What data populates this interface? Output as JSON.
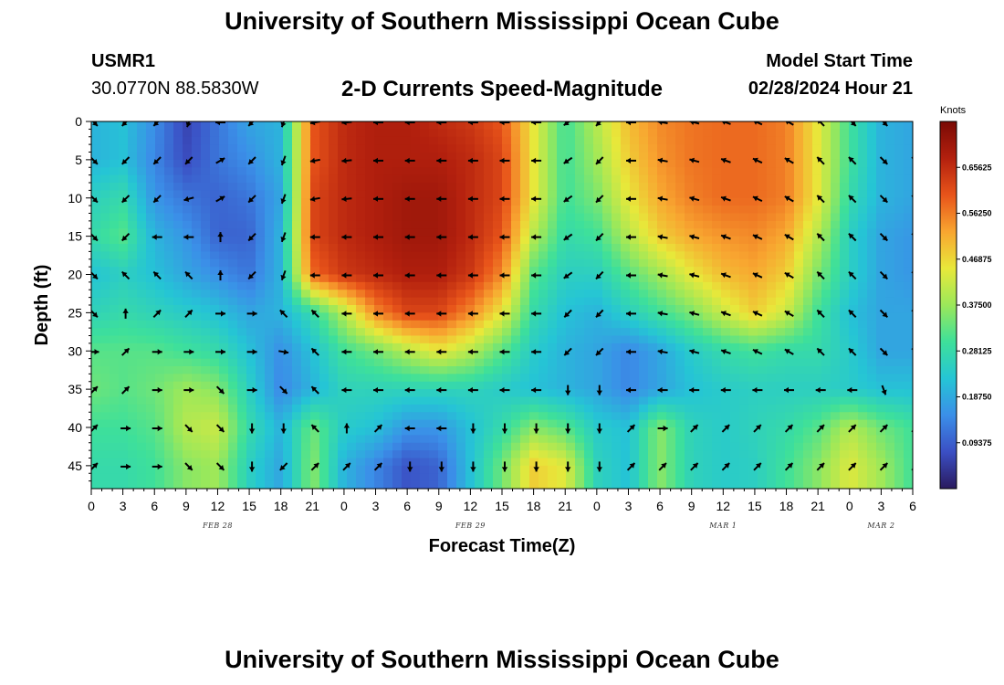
{
  "header": {
    "title": "University of Southern Mississippi Ocean Cube",
    "station_id": "USMR1",
    "station_coords": "30.0770N  88.5830W",
    "plot_title": "2-D Currents Speed-Magnitude",
    "model_label": "Model Start Time",
    "model_time": "02/28/2024 Hour 21"
  },
  "footer": {
    "title": "University of Southern Mississippi Ocean Cube"
  },
  "chart_data": {
    "type": "heatmap",
    "xlabel": "Forecast Time(Z)",
    "ylabel": "Depth (ft)",
    "x_tick_labels": [
      "0",
      "3",
      "6",
      "9",
      "12",
      "15",
      "18",
      "21",
      "0",
      "3",
      "6",
      "9",
      "12",
      "15",
      "18",
      "21",
      "0",
      "3",
      "6",
      "9",
      "12",
      "15",
      "18",
      "21",
      "0",
      "3",
      "6"
    ],
    "date_labels": [
      {
        "text": "FEB 28",
        "tick_index": 4
      },
      {
        "text": "FEB 29",
        "tick_index": 12
      },
      {
        "text": "MAR 1",
        "tick_index": 20
      },
      {
        "text": "MAR 2",
        "tick_index": 25
      }
    ],
    "y_ticks": [
      0,
      5,
      10,
      15,
      20,
      25,
      30,
      35,
      40,
      45
    ],
    "ylim": [
      0,
      48
    ],
    "colorbar": {
      "unit": "Knots",
      "ticks": [
        "0.65625",
        "0.56250",
        "0.46875",
        "0.37500",
        "0.28125",
        "0.18750",
        "0.09375"
      ],
      "range": [
        0,
        0.75
      ]
    },
    "colors": [
      "#2a1a5e",
      "#3b4fc4",
      "#3b8fe8",
      "#25c5d5",
      "#3ee09a",
      "#9be85a",
      "#e8e83a",
      "#f8a530",
      "#e8541a",
      "#b3200e",
      "#7a0a05"
    ],
    "vector_depths": [
      0,
      5,
      10,
      15,
      20,
      25,
      30,
      35,
      40,
      45
    ],
    "vector_times": [
      0,
      3,
      6,
      9,
      12,
      15,
      18,
      21,
      24,
      27,
      30,
      33,
      36,
      39,
      42,
      45,
      48,
      51,
      54,
      57,
      60,
      63,
      66,
      69,
      72,
      75,
      78
    ],
    "speed_knots": [
      [
        0.2,
        0.22,
        0.15,
        0.06,
        0.12,
        0.18,
        0.2,
        0.6,
        0.66,
        0.68,
        0.68,
        0.66,
        0.64,
        0.6,
        0.45,
        0.3,
        0.4,
        0.5,
        0.55,
        0.57,
        0.58,
        0.58,
        0.56,
        0.45,
        0.3,
        0.2,
        0.18
      ],
      [
        0.2,
        0.22,
        0.14,
        0.07,
        0.12,
        0.15,
        0.2,
        0.6,
        0.66,
        0.68,
        0.68,
        0.68,
        0.66,
        0.62,
        0.45,
        0.3,
        0.38,
        0.48,
        0.54,
        0.57,
        0.58,
        0.58,
        0.56,
        0.45,
        0.3,
        0.2,
        0.18
      ],
      [
        0.25,
        0.28,
        0.16,
        0.12,
        0.1,
        0.12,
        0.18,
        0.62,
        0.66,
        0.68,
        0.7,
        0.7,
        0.66,
        0.62,
        0.45,
        0.3,
        0.35,
        0.45,
        0.52,
        0.56,
        0.58,
        0.58,
        0.56,
        0.45,
        0.28,
        0.2,
        0.18
      ],
      [
        0.28,
        0.32,
        0.2,
        0.16,
        0.1,
        0.1,
        0.2,
        0.62,
        0.66,
        0.68,
        0.7,
        0.7,
        0.66,
        0.6,
        0.4,
        0.28,
        0.3,
        0.4,
        0.48,
        0.52,
        0.54,
        0.55,
        0.52,
        0.4,
        0.25,
        0.18,
        0.16
      ],
      [
        0.22,
        0.25,
        0.22,
        0.18,
        0.15,
        0.12,
        0.2,
        0.58,
        0.64,
        0.66,
        0.68,
        0.68,
        0.64,
        0.55,
        0.32,
        0.25,
        0.25,
        0.32,
        0.38,
        0.45,
        0.5,
        0.52,
        0.48,
        0.35,
        0.25,
        0.18,
        0.16
      ],
      [
        0.26,
        0.28,
        0.26,
        0.24,
        0.22,
        0.18,
        0.2,
        0.28,
        0.4,
        0.55,
        0.62,
        0.62,
        0.55,
        0.45,
        0.28,
        0.22,
        0.2,
        0.25,
        0.3,
        0.35,
        0.42,
        0.48,
        0.42,
        0.3,
        0.22,
        0.18,
        0.18
      ],
      [
        0.32,
        0.32,
        0.32,
        0.3,
        0.28,
        0.22,
        0.15,
        0.22,
        0.3,
        0.34,
        0.4,
        0.45,
        0.4,
        0.32,
        0.24,
        0.2,
        0.18,
        0.14,
        0.18,
        0.24,
        0.28,
        0.3,
        0.28,
        0.28,
        0.24,
        0.18,
        0.18
      ],
      [
        0.34,
        0.32,
        0.34,
        0.38,
        0.36,
        0.25,
        0.14,
        0.2,
        0.26,
        0.26,
        0.26,
        0.26,
        0.26,
        0.24,
        0.22,
        0.2,
        0.18,
        0.14,
        0.18,
        0.22,
        0.24,
        0.25,
        0.25,
        0.25,
        0.24,
        0.22,
        0.22
      ],
      [
        0.3,
        0.3,
        0.32,
        0.4,
        0.42,
        0.28,
        0.2,
        0.34,
        0.24,
        0.22,
        0.16,
        0.16,
        0.22,
        0.28,
        0.36,
        0.32,
        0.24,
        0.22,
        0.36,
        0.26,
        0.24,
        0.26,
        0.28,
        0.32,
        0.4,
        0.34,
        0.3
      ],
      [
        0.28,
        0.28,
        0.3,
        0.36,
        0.38,
        0.25,
        0.18,
        0.36,
        0.2,
        0.14,
        0.08,
        0.1,
        0.22,
        0.34,
        0.48,
        0.44,
        0.26,
        0.22,
        0.36,
        0.26,
        0.24,
        0.25,
        0.3,
        0.36,
        0.44,
        0.38,
        0.3
      ]
    ],
    "direction_deg": [
      [
        135,
        225,
        225,
        200,
        270,
        225,
        200,
        260,
        265,
        270,
        270,
        270,
        270,
        270,
        270,
        235,
        225,
        270,
        280,
        285,
        290,
        295,
        300,
        315,
        135,
        135,
        135
      ],
      [
        135,
        225,
        225,
        225,
        60,
        225,
        200,
        260,
        265,
        270,
        270,
        270,
        270,
        270,
        270,
        235,
        225,
        270,
        280,
        285,
        290,
        295,
        300,
        315,
        315,
        135,
        135
      ],
      [
        135,
        225,
        225,
        255,
        60,
        225,
        200,
        260,
        265,
        270,
        270,
        270,
        270,
        270,
        270,
        235,
        225,
        270,
        280,
        285,
        290,
        295,
        300,
        315,
        315,
        135,
        135
      ],
      [
        135,
        225,
        270,
        270,
        0,
        225,
        200,
        270,
        270,
        270,
        270,
        270,
        270,
        270,
        270,
        235,
        225,
        270,
        280,
        285,
        290,
        295,
        300,
        315,
        315,
        135,
        135
      ],
      [
        135,
        315,
        315,
        315,
        0,
        225,
        200,
        270,
        270,
        270,
        270,
        270,
        270,
        270,
        270,
        235,
        225,
        270,
        280,
        285,
        290,
        295,
        300,
        315,
        315,
        135,
        135
      ],
      [
        135,
        0,
        45,
        45,
        90,
        90,
        315,
        315,
        270,
        270,
        270,
        270,
        270,
        270,
        270,
        225,
        225,
        270,
        280,
        285,
        290,
        295,
        300,
        315,
        315,
        135,
        135
      ],
      [
        90,
        45,
        90,
        90,
        90,
        90,
        100,
        315,
        270,
        270,
        270,
        270,
        270,
        270,
        270,
        225,
        225,
        270,
        280,
        285,
        290,
        295,
        300,
        315,
        315,
        135,
        135
      ],
      [
        45,
        45,
        90,
        90,
        135,
        90,
        135,
        315,
        270,
        270,
        270,
        270,
        270,
        270,
        270,
        180,
        180,
        270,
        270,
        270,
        270,
        270,
        270,
        270,
        270,
        160,
        160
      ],
      [
        45,
        90,
        90,
        135,
        135,
        180,
        180,
        315,
        0,
        45,
        270,
        270,
        180,
        180,
        180,
        180,
        180,
        45,
        90,
        45,
        45,
        45,
        45,
        45,
        45,
        45,
        45
      ],
      [
        45,
        90,
        90,
        135,
        135,
        180,
        225,
        45,
        45,
        45,
        180,
        180,
        180,
        180,
        180,
        180,
        180,
        45,
        45,
        45,
        45,
        45,
        45,
        45,
        45,
        45,
        45
      ]
    ]
  }
}
